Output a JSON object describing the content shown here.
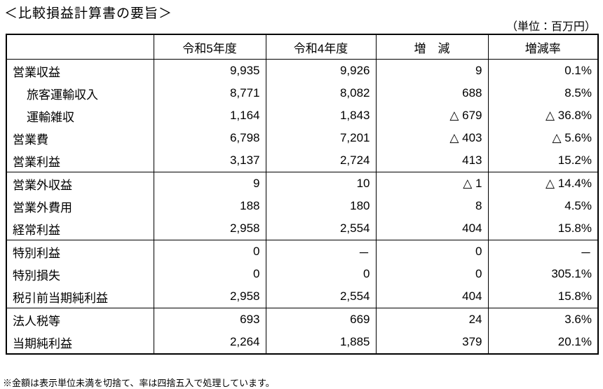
{
  "header": {
    "title": "＜比較損益計算書の要旨＞",
    "unit": "（単位：百万円）"
  },
  "table": {
    "columns": [
      "",
      "令和5年度",
      "令和4年度",
      "増　減",
      "増減率"
    ],
    "rows": [
      [
        "営業収益",
        "9,935",
        "9,926",
        "9",
        "0.1%"
      ],
      [
        "旅客運輸収入",
        "8,771",
        "8,082",
        "688",
        "8.5%"
      ],
      [
        "運輸雑収",
        "1,164",
        "1,843",
        "△ 679",
        "△ 36.8%"
      ],
      [
        "営業費",
        "6,798",
        "7,201",
        "△ 403",
        "△ 5.6%"
      ],
      [
        "営業利益",
        "3,137",
        "2,724",
        "413",
        "15.2%"
      ],
      [
        "営業外収益",
        "9",
        "10",
        "△ 1",
        "△ 14.4%"
      ],
      [
        "営業外費用",
        "188",
        "180",
        "8",
        "4.5%"
      ],
      [
        "経常利益",
        "2,958",
        "2,554",
        "404",
        "15.8%"
      ],
      [
        "特別利益",
        "0",
        "－",
        "0",
        "－"
      ],
      [
        "特別損失",
        "0",
        "0",
        "0",
        "305.1%"
      ],
      [
        "税引前当期純利益",
        "2,958",
        "2,554",
        "404",
        "15.8%"
      ],
      [
        "法人税等",
        "693",
        "669",
        "24",
        "3.6%"
      ],
      [
        "当期純利益",
        "2,264",
        "1,885",
        "379",
        "20.1%"
      ]
    ]
  },
  "footnote": "※金額は表示単位未満を切捨て、率は四捨五入で処理しています。"
}
